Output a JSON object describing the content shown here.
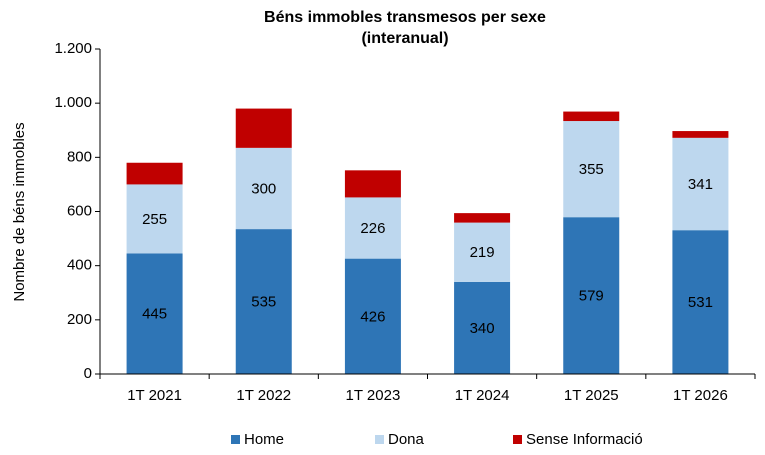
{
  "chart_data": {
    "type": "stacked_bar",
    "title": "Béns immobles transmesos  per sexe",
    "subtitle": "(interanual)",
    "y_label": "Nombre de béns immobles",
    "categories": [
      "1T 2021",
      "1T 2022",
      "1T 2023",
      "1T 2024",
      "1T 2025",
      "1T 2026"
    ],
    "series": [
      {
        "name": "Home",
        "color": "#2e75b6",
        "values": [
          445,
          535,
          426,
          340,
          579,
          531
        ],
        "show_labels": true
      },
      {
        "name": "Dona",
        "color": "#bdd7ee",
        "values": [
          255,
          300,
          226,
          219,
          355,
          341
        ],
        "show_labels": true
      },
      {
        "name": "Sense Informació",
        "color": "#c00000",
        "values": [
          80,
          145,
          100,
          35,
          35,
          25
        ],
        "show_labels": false
      }
    ],
    "ylim": [
      0,
      1200
    ],
    "yticks": [
      0,
      200,
      400,
      600,
      800,
      {
        "value": 1000,
        "label": "1.000"
      },
      {
        "value": 1200,
        "label": "1.200"
      }
    ],
    "grid": false,
    "legend": "bottom"
  }
}
